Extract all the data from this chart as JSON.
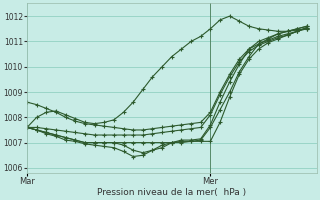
{
  "bg_color": "#c8ece6",
  "grid_color": "#88ccbb",
  "line_color": "#2d5a2d",
  "xlabel": "Pression niveau de la mer(  hPa )",
  "xtick_labels": [
    "Mar",
    "Mer"
  ],
  "ylim": [
    1005.8,
    1012.5
  ],
  "yticks": [
    1006,
    1007,
    1008,
    1009,
    1010,
    1011,
    1012
  ],
  "xlim": [
    0,
    30
  ],
  "vline_x": 19,
  "lines": [
    {
      "x": [
        0,
        1,
        2,
        3,
        4,
        5,
        6,
        7,
        8,
        9,
        10,
        11,
        12,
        13,
        14,
        15,
        16,
        17,
        18,
        19,
        20,
        21,
        22,
        23,
        24,
        25,
        26,
        27,
        28,
        29
      ],
      "y": [
        1007.6,
        1007.5,
        1007.4,
        1007.3,
        1007.2,
        1007.1,
        1007.0,
        1007.0,
        1007.0,
        1007.0,
        1007.0,
        1007.0,
        1007.0,
        1007.0,
        1007.0,
        1007.0,
        1007.0,
        1007.05,
        1007.1,
        1007.6,
        1008.3,
        1009.0,
        1009.8,
        1010.4,
        1010.9,
        1011.1,
        1011.3,
        1011.4,
        1011.5,
        1011.6
      ]
    },
    {
      "x": [
        0,
        1,
        2,
        3,
        4,
        5,
        6,
        7,
        8,
        9,
        10,
        11,
        12,
        13,
        14,
        15,
        16,
        17,
        18,
        19,
        20,
        21,
        22,
        23,
        24,
        25,
        26,
        27,
        28,
        29
      ],
      "y": [
        1007.6,
        1007.5,
        1007.4,
        1007.3,
        1007.2,
        1007.1,
        1007.0,
        1007.0,
        1007.0,
        1007.0,
        1006.9,
        1006.7,
        1006.6,
        1006.7,
        1006.8,
        1007.0,
        1007.1,
        1007.1,
        1007.15,
        1007.7,
        1008.6,
        1009.4,
        1010.1,
        1010.7,
        1011.0,
        1011.15,
        1011.3,
        1011.4,
        1011.5,
        1011.6
      ]
    },
    {
      "x": [
        0,
        1,
        2,
        3,
        4,
        5,
        6,
        7,
        8,
        9,
        10,
        11,
        12,
        13,
        14,
        15,
        16,
        17,
        18,
        19,
        20,
        21,
        22,
        23,
        24,
        25,
        26,
        27,
        28,
        29
      ],
      "y": [
        1007.6,
        1007.5,
        1007.35,
        1007.25,
        1007.1,
        1007.05,
        1006.95,
        1006.9,
        1006.85,
        1006.8,
        1006.65,
        1006.45,
        1006.5,
        1006.7,
        1006.9,
        1007.0,
        1007.05,
        1007.05,
        1007.05,
        1007.05,
        1007.8,
        1008.8,
        1009.7,
        1010.3,
        1010.7,
        1010.95,
        1011.1,
        1011.25,
        1011.4,
        1011.55
      ]
    },
    {
      "x": [
        0,
        1,
        2,
        3,
        4,
        5,
        6,
        7,
        8,
        9,
        10,
        11,
        12,
        13,
        14,
        15,
        16,
        17,
        18,
        19,
        20,
        21,
        22,
        23,
        24,
        25,
        26,
        27,
        28,
        29
      ],
      "y": [
        1008.6,
        1008.5,
        1008.35,
        1008.2,
        1008.0,
        1007.85,
        1007.75,
        1007.7,
        1007.65,
        1007.6,
        1007.55,
        1007.5,
        1007.5,
        1007.55,
        1007.6,
        1007.65,
        1007.7,
        1007.75,
        1007.8,
        1008.2,
        1009.0,
        1009.7,
        1010.3,
        1010.7,
        1010.9,
        1011.05,
        1011.2,
        1011.3,
        1011.4,
        1011.5
      ]
    },
    {
      "x": [
        0,
        1,
        2,
        3,
        4,
        5,
        6,
        7,
        8,
        9,
        10,
        11,
        12,
        13,
        14,
        15,
        16,
        17,
        18,
        19,
        20,
        21,
        22,
        23,
        24,
        25,
        26,
        27,
        28,
        29
      ],
      "y": [
        1007.6,
        1008.0,
        1008.2,
        1008.25,
        1008.1,
        1007.95,
        1007.8,
        1007.75,
        1007.8,
        1007.9,
        1008.2,
        1008.6,
        1009.1,
        1009.6,
        1010.0,
        1010.4,
        1010.7,
        1011.0,
        1011.2,
        1011.5,
        1011.85,
        1012.0,
        1011.8,
        1011.6,
        1011.5,
        1011.45,
        1011.4,
        1011.4,
        1011.45,
        1011.5
      ]
    },
    {
      "x": [
        0,
        1,
        2,
        3,
        4,
        5,
        6,
        7,
        8,
        9,
        10,
        11,
        12,
        13,
        14,
        15,
        16,
        17,
        18,
        19,
        20,
        21,
        22,
        23,
        24,
        25,
        26,
        27,
        28,
        29
      ],
      "y": [
        1007.6,
        1007.6,
        1007.55,
        1007.5,
        1007.45,
        1007.4,
        1007.35,
        1007.3,
        1007.3,
        1007.3,
        1007.3,
        1007.3,
        1007.3,
        1007.35,
        1007.4,
        1007.45,
        1007.5,
        1007.55,
        1007.6,
        1008.1,
        1008.9,
        1009.6,
        1010.2,
        1010.6,
        1010.85,
        1011.0,
        1011.15,
        1011.25,
        1011.4,
        1011.55
      ]
    }
  ],
  "figsize": [
    3.2,
    2.0
  ],
  "dpi": 100
}
